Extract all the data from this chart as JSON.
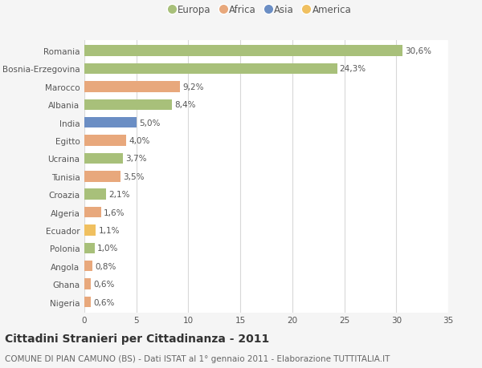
{
  "countries": [
    "Romania",
    "Bosnia-Erzegovina",
    "Marocco",
    "Albania",
    "India",
    "Egitto",
    "Ucraina",
    "Tunisia",
    "Croazia",
    "Algeria",
    "Ecuador",
    "Polonia",
    "Angola",
    "Ghana",
    "Nigeria"
  ],
  "values": [
    30.6,
    24.3,
    9.2,
    8.4,
    5.0,
    4.0,
    3.7,
    3.5,
    2.1,
    1.6,
    1.1,
    1.0,
    0.8,
    0.6,
    0.6
  ],
  "labels": [
    "30,6%",
    "24,3%",
    "9,2%",
    "8,4%",
    "5,0%",
    "4,0%",
    "3,7%",
    "3,5%",
    "2,1%",
    "1,6%",
    "1,1%",
    "1,0%",
    "0,8%",
    "0,6%",
    "0,6%"
  ],
  "continents": [
    "Europa",
    "Europa",
    "Africa",
    "Europa",
    "Asia",
    "Africa",
    "Europa",
    "Africa",
    "Europa",
    "Africa",
    "America",
    "Europa",
    "Africa",
    "Africa",
    "Africa"
  ],
  "colors": {
    "Europa": "#a8c07a",
    "Africa": "#e8a87c",
    "Asia": "#6b8ec4",
    "America": "#f0c060"
  },
  "legend_order": [
    "Europa",
    "Africa",
    "Asia",
    "America"
  ],
  "bg_color": "#f5f5f5",
  "plot_bg_color": "#ffffff",
  "grid_color": "#d8d8d8",
  "title": "Cittadini Stranieri per Cittadinanza - 2011",
  "subtitle": "COMUNE DI PIAN CAMUNO (BS) - Dati ISTAT al 1° gennaio 2011 - Elaborazione TUTTITALIA.IT",
  "xlim": [
    0,
    35
  ],
  "xticks": [
    0,
    5,
    10,
    15,
    20,
    25,
    30,
    35
  ],
  "title_fontsize": 10,
  "subtitle_fontsize": 7.5,
  "label_fontsize": 7.5,
  "tick_fontsize": 7.5,
  "legend_fontsize": 8.5,
  "bar_height": 0.6
}
